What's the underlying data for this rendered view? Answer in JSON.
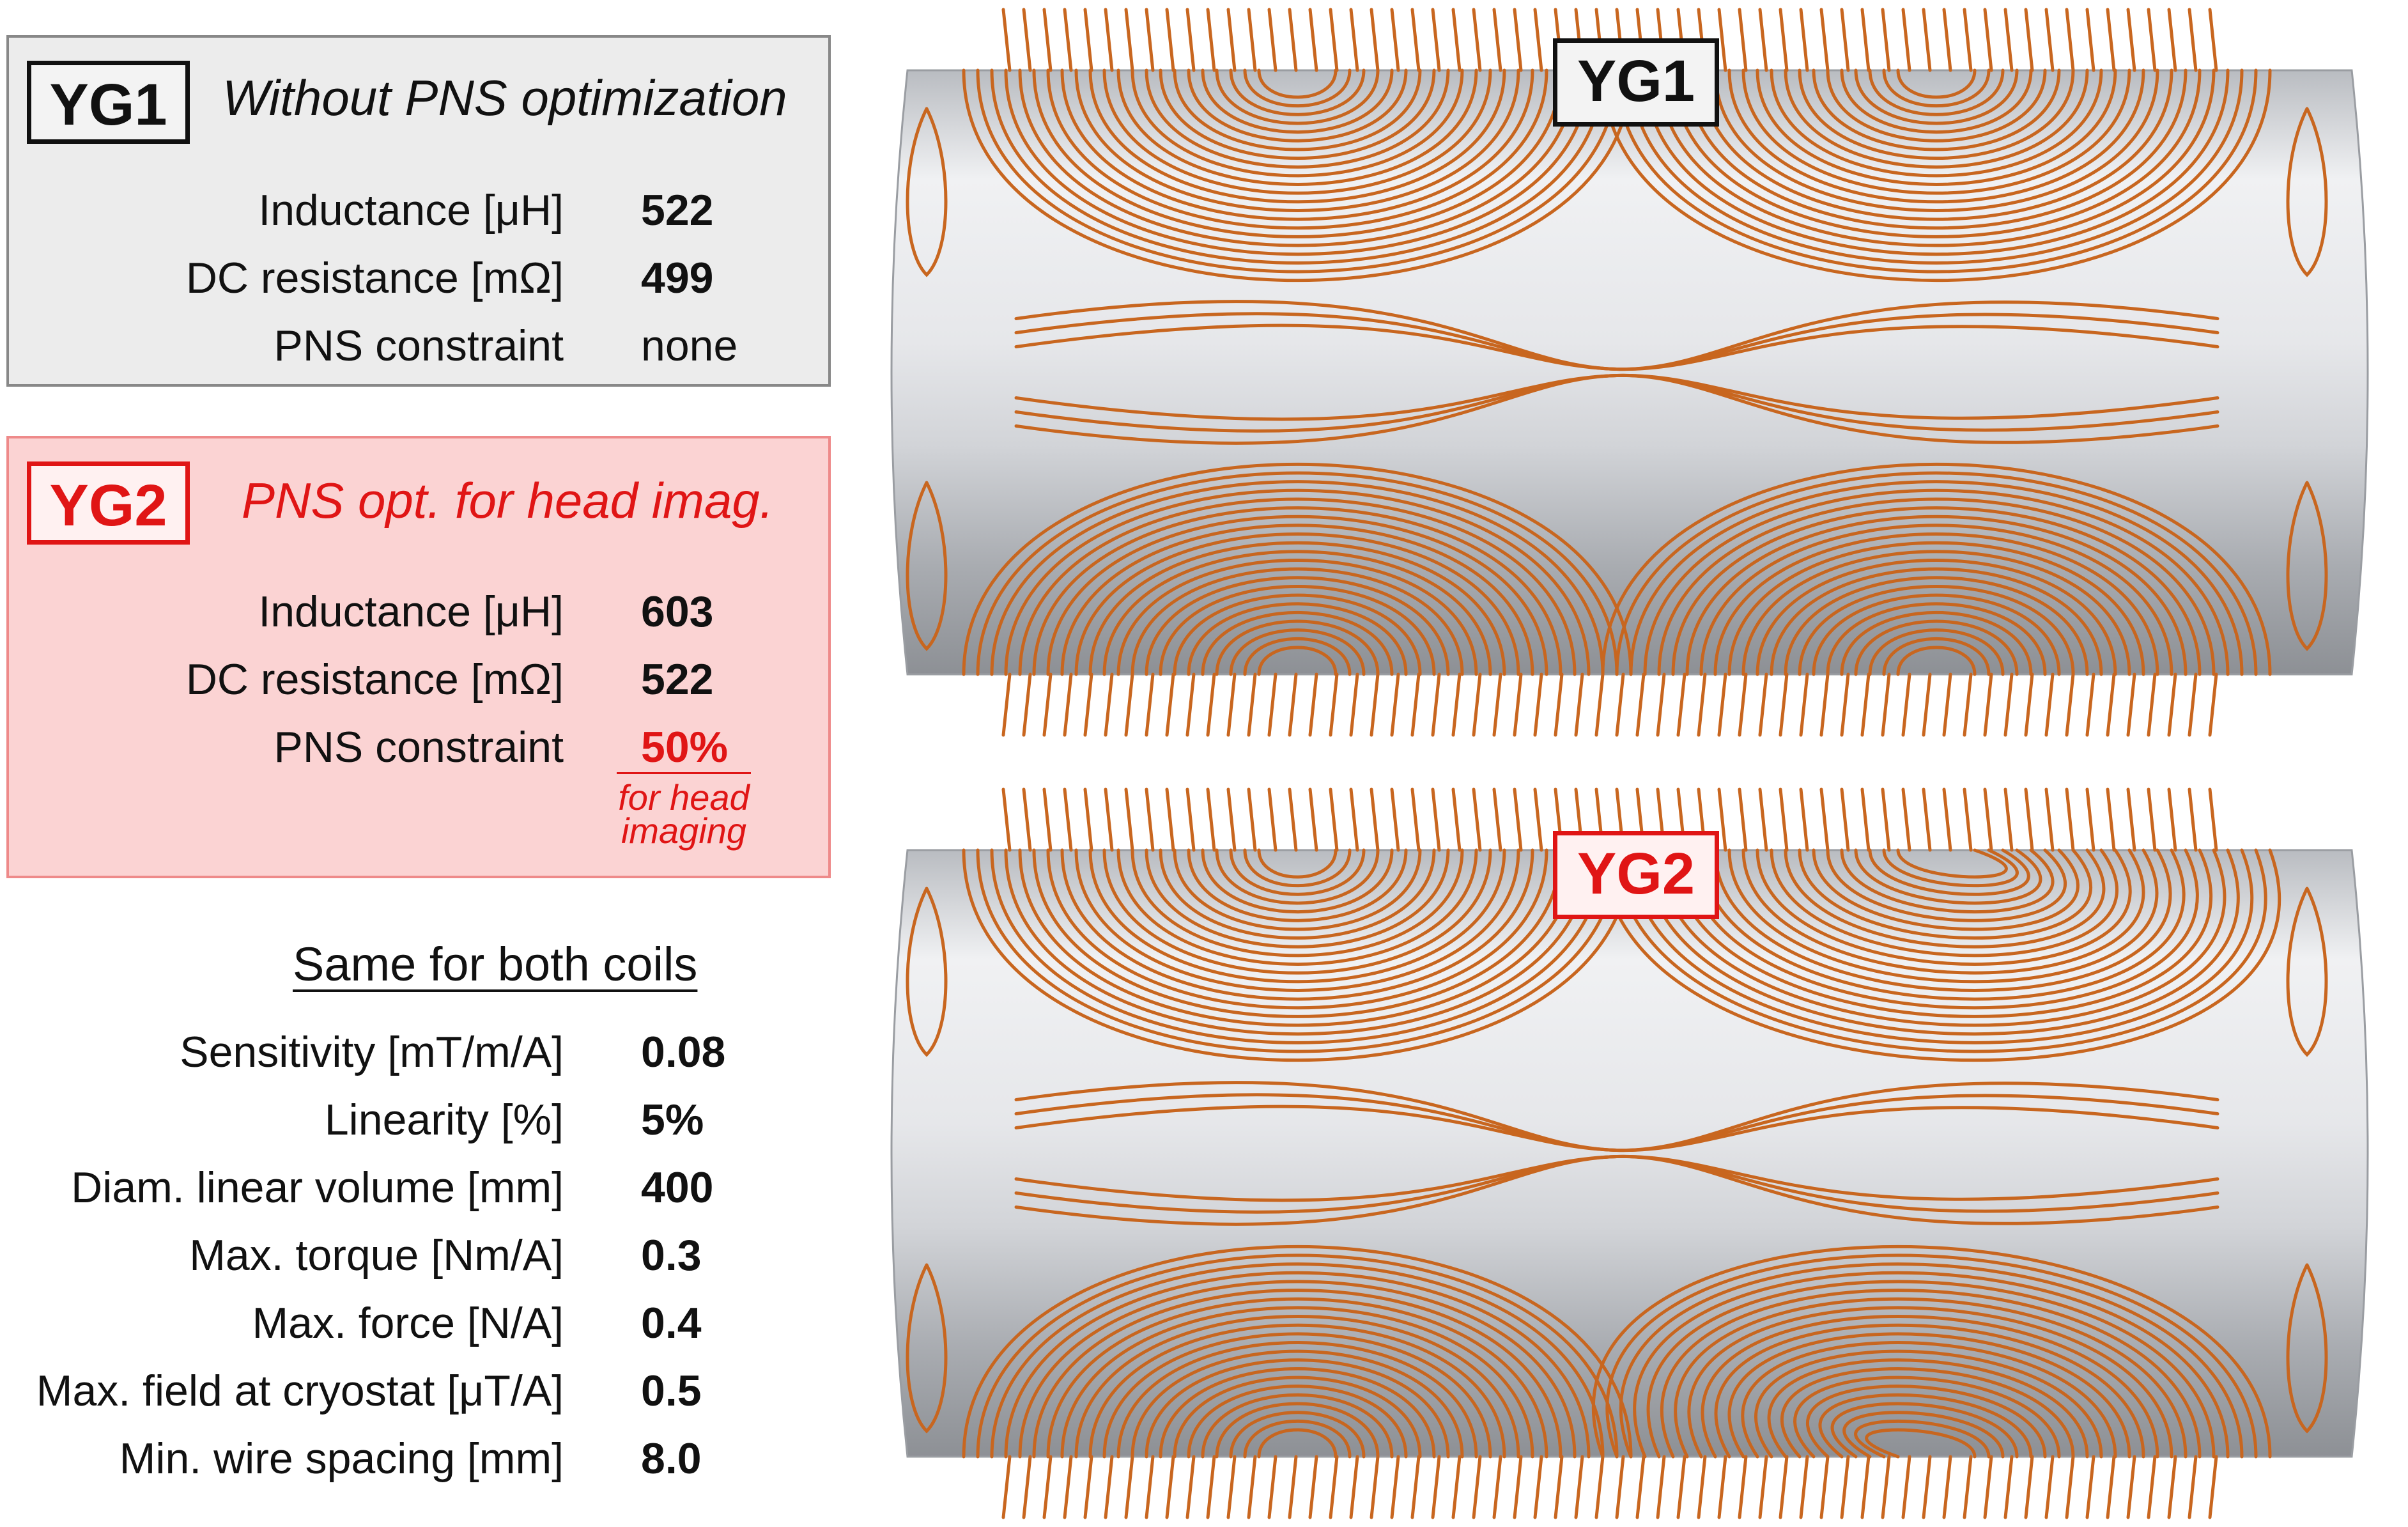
{
  "yg1": {
    "tag": "YG1",
    "subtitle": "Without PNS optimization",
    "rows": [
      {
        "label": "Inductance [μH]",
        "value": "522"
      },
      {
        "label": "DC resistance [mΩ]",
        "value": "499"
      },
      {
        "label": "PNS constraint",
        "value": "none"
      }
    ]
  },
  "yg2": {
    "tag": "YG2",
    "subtitle": "PNS opt. for head imag.",
    "rows": [
      {
        "label": "Inductance [μH]",
        "value": "603"
      },
      {
        "label": "DC resistance [mΩ]",
        "value": "522"
      },
      {
        "label": "PNS constraint",
        "value": "50%"
      }
    ],
    "pns_note_line1": "for head",
    "pns_note_line2": "imaging"
  },
  "common": {
    "title": "Same for both coils",
    "rows": [
      {
        "label": "Sensitivity [mT/m/A]",
        "value": "0.08"
      },
      {
        "label": "Linearity [%]",
        "value": "5%"
      },
      {
        "label": "Diam. linear volume [mm]",
        "value": "400"
      },
      {
        "label": "Max. torque [Nm/A]",
        "value": "0.3"
      },
      {
        "label": "Max. force [N/A]",
        "value": "0.4"
      },
      {
        "label": "Max. field at cryostat [μT/A]",
        "value": "0.5"
      },
      {
        "label": "Min. wire spacing [mm]",
        "value": "8.0"
      }
    ]
  },
  "images": {
    "top_coil_tag": "YG1",
    "bottom_coil_tag": "YG2"
  },
  "colors": {
    "accent_red": "#e01515",
    "copper": "#c8661f",
    "cylinder_gray": "#d8dade"
  }
}
